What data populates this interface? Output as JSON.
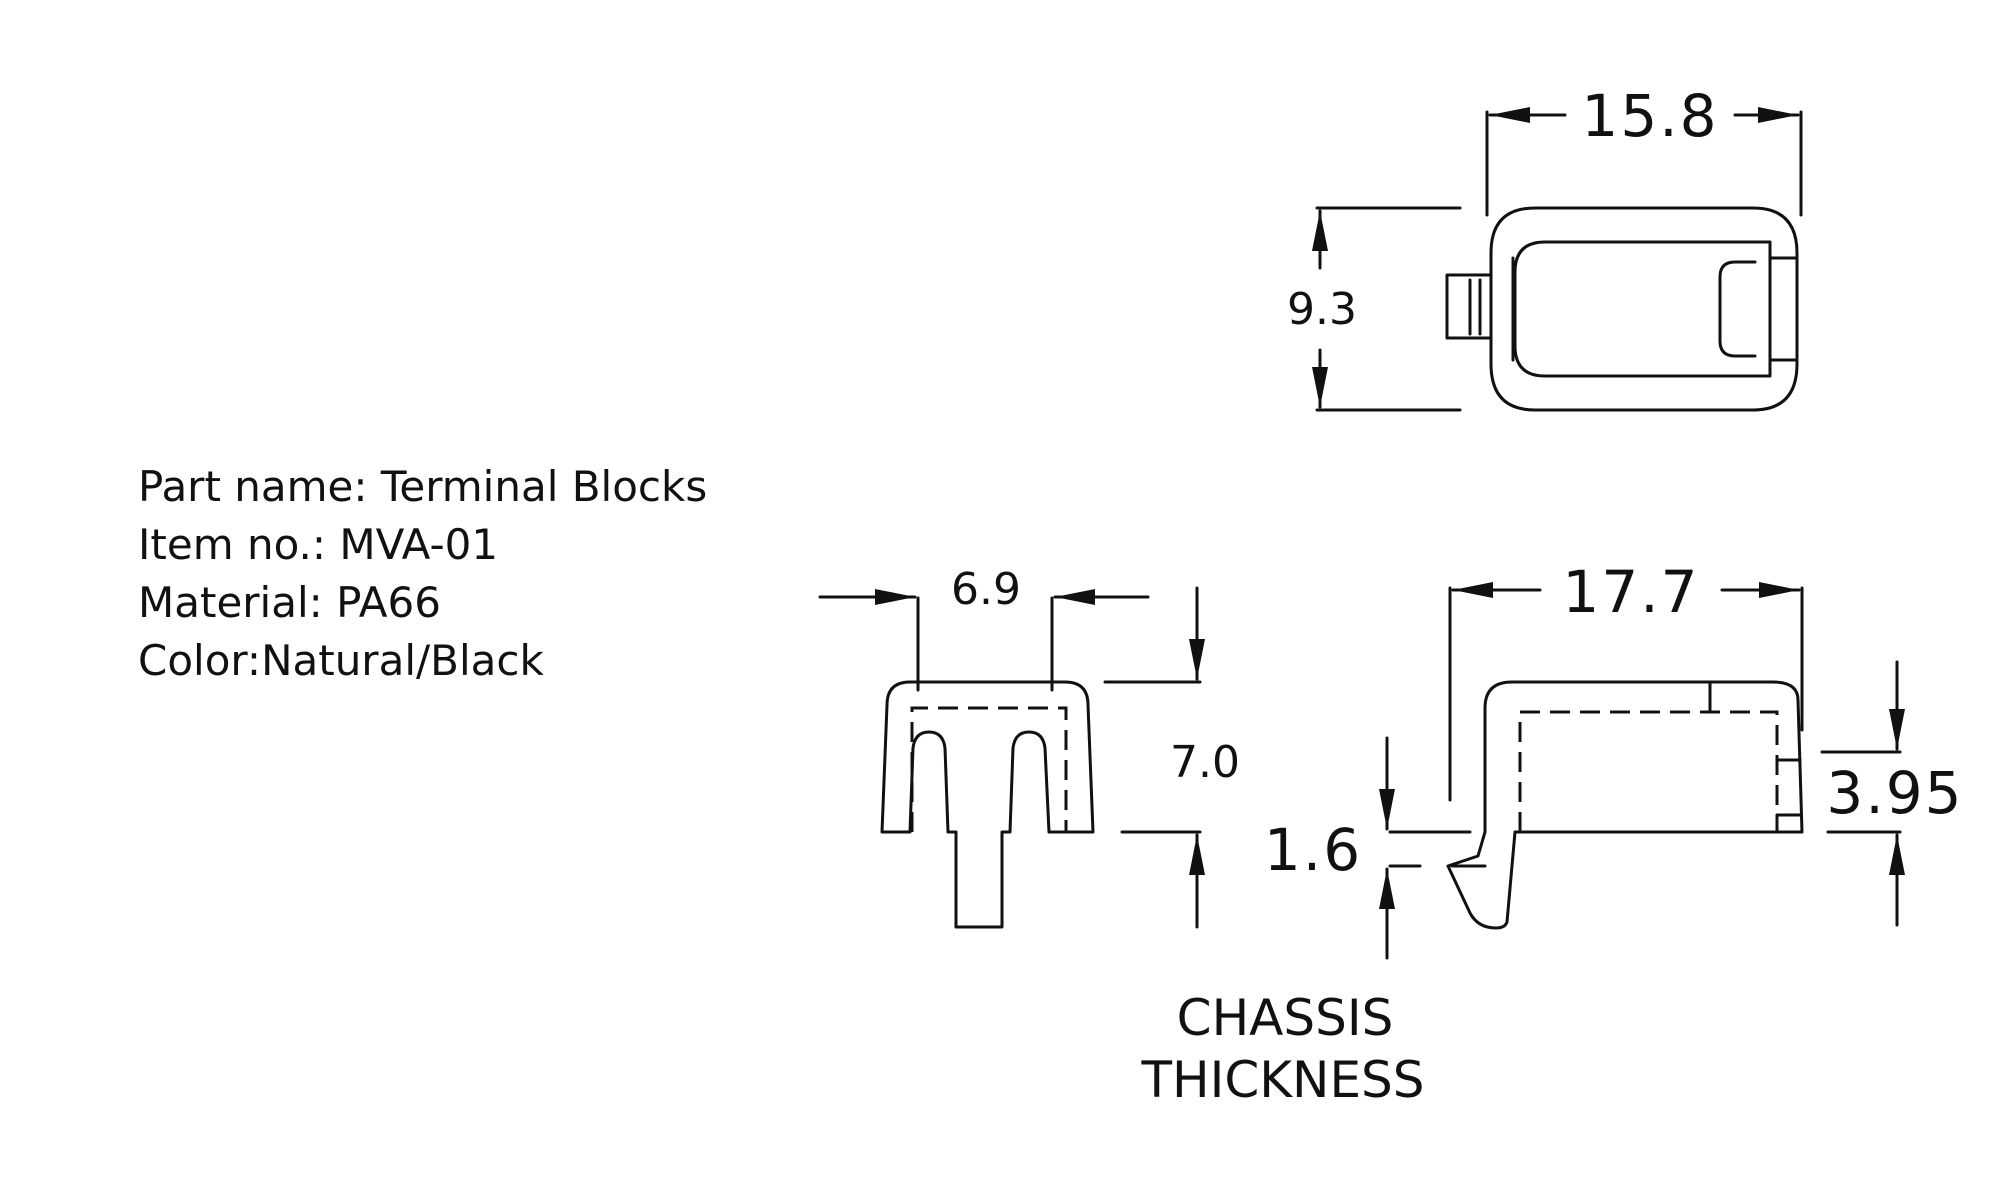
{
  "spec": {
    "part_name": "Part name: Terminal Blocks",
    "item_no": "Item no.: MVA-01",
    "material": "Material: PA66",
    "color": "Color:Natural/Black"
  },
  "dimensions": {
    "top_width": "15.8",
    "top_height": "9.3",
    "front_width": "6.9",
    "front_height": "7.0",
    "side_width": "17.7",
    "side_height": "3.95",
    "chassis_thickness": "1.6"
  },
  "notes": {
    "chassis_line1": "CHASSIS",
    "chassis_line2": "THICKNESS"
  }
}
